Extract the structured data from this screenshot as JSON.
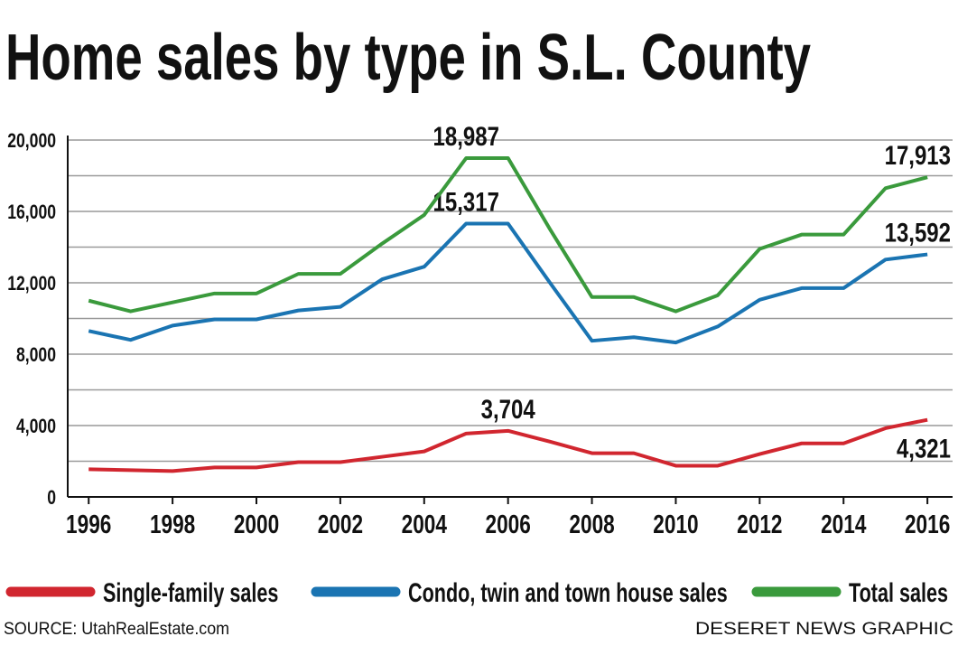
{
  "chart_data": {
    "type": "line",
    "title": "Home sales by type in S.L. County",
    "x": [
      1996,
      1997,
      1998,
      1999,
      2000,
      2001,
      2002,
      2003,
      2004,
      2005,
      2006,
      2007,
      2008,
      2009,
      2010,
      2011,
      2012,
      2013,
      2014,
      2015,
      2016
    ],
    "xlim": [
      1995.5,
      2016.6
    ],
    "xticks": [
      1996,
      1998,
      2000,
      2002,
      2004,
      2006,
      2008,
      2010,
      2012,
      2014,
      2016
    ],
    "ylim": [
      0,
      20000
    ],
    "yticks": [
      0,
      {
        "value": 4000,
        "label": "4,000"
      },
      {
        "value": 8000,
        "label": "8,000"
      },
      {
        "value": 12000,
        "label": "12,000"
      },
      {
        "value": 16000,
        "label": "16,000"
      },
      {
        "value": 20000,
        "label": "20,000"
      }
    ],
    "ygrid_minor": [
      2000,
      6000,
      10000,
      14000,
      18000
    ],
    "grid": true,
    "series": [
      {
        "name": "Single-family sales",
        "color": "#d1262f",
        "values": [
          1550,
          1500,
          1450,
          1650,
          1650,
          1950,
          1950,
          2250,
          2550,
          3550,
          3704,
          3100,
          2450,
          2450,
          1750,
          1750,
          2400,
          3000,
          3000,
          3850,
          4321
        ],
        "value_labels": [
          null,
          null,
          null,
          null,
          null,
          null,
          null,
          null,
          null,
          null,
          "3,704",
          null,
          null,
          null,
          null,
          null,
          null,
          null,
          null,
          null,
          "4,321"
        ]
      },
      {
        "name": "Condo, twin and town house sales",
        "color": "#1a74b2",
        "values": [
          9300,
          8800,
          9600,
          9950,
          9950,
          10450,
          10650,
          12200,
          12900,
          15317,
          15317,
          12000,
          8750,
          8950,
          8650,
          9550,
          11050,
          11700,
          11700,
          13300,
          13592
        ],
        "value_labels": [
          null,
          null,
          null,
          null,
          null,
          null,
          null,
          null,
          null,
          "15,317",
          null,
          null,
          null,
          null,
          null,
          null,
          null,
          null,
          null,
          null,
          "13,592"
        ]
      },
      {
        "name": "Total sales",
        "color": "#3a9a3c",
        "values": [
          11000,
          10400,
          10900,
          11400,
          11400,
          12500,
          12500,
          14200,
          15800,
          18987,
          18987,
          15000,
          11200,
          11200,
          10400,
          11300,
          13900,
          14700,
          14700,
          17300,
          17913
        ],
        "value_labels": [
          null,
          null,
          null,
          null,
          null,
          null,
          null,
          null,
          null,
          "18,987",
          null,
          null,
          null,
          null,
          null,
          null,
          null,
          null,
          null,
          null,
          "17,913"
        ]
      }
    ],
    "source": "SOURCE: UtahRealEstate.com",
    "credit": "DESERET NEWS GRAPHIC"
  }
}
